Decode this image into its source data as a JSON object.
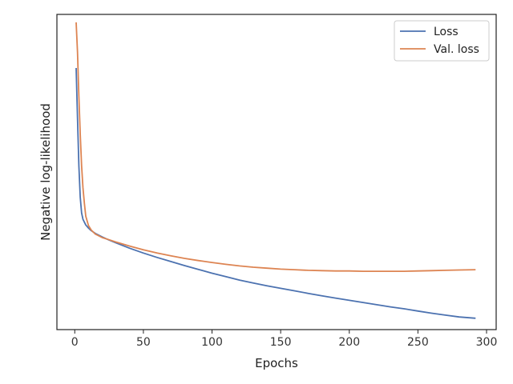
{
  "chart_data": {
    "type": "line",
    "xlabel": "Epochs",
    "ylabel": "Negative log-likelihood",
    "xlim": [
      -13,
      307
    ],
    "ylim": [
      0,
      100
    ],
    "x_ticks": [
      0,
      50,
      100,
      150,
      200,
      250,
      300
    ],
    "y_ticks_visible": false,
    "grid": false,
    "legend_position": "top-right",
    "series": [
      {
        "name": "Loss",
        "color": "#4c72b0",
        "x": [
          1,
          2,
          3,
          4,
          5,
          6,
          8,
          10,
          12,
          15,
          20,
          25,
          30,
          40,
          50,
          60,
          70,
          80,
          90,
          100,
          110,
          120,
          130,
          140,
          150,
          160,
          170,
          180,
          190,
          200,
          210,
          220,
          230,
          240,
          250,
          260,
          270,
          280,
          292
        ],
        "y": [
          83.0,
          67.0,
          52.0,
          42.0,
          37.0,
          35.0,
          33.2,
          32.2,
          31.4,
          30.5,
          29.4,
          28.4,
          27.5,
          25.8,
          24.3,
          22.9,
          21.6,
          20.3,
          19.1,
          17.9,
          16.8,
          15.7,
          14.8,
          13.9,
          13.1,
          12.3,
          11.5,
          10.7,
          10.0,
          9.3,
          8.6,
          7.9,
          7.2,
          6.6,
          5.9,
          5.2,
          4.6,
          4.0,
          3.6
        ]
      },
      {
        "name": "Val. loss",
        "color": "#dd8452",
        "x": [
          1,
          2,
          3,
          4,
          5,
          6,
          7,
          8,
          10,
          12,
          15,
          20,
          25,
          30,
          40,
          50,
          60,
          70,
          80,
          90,
          100,
          110,
          120,
          130,
          140,
          150,
          160,
          170,
          180,
          190,
          200,
          210,
          220,
          230,
          240,
          250,
          260,
          270,
          280,
          292
        ],
        "y": [
          97.5,
          88.0,
          74.0,
          62.0,
          52.0,
          45.0,
          40.0,
          36.0,
          33.0,
          31.6,
          30.3,
          29.2,
          28.5,
          27.8,
          26.5,
          25.3,
          24.3,
          23.4,
          22.6,
          21.9,
          21.3,
          20.7,
          20.2,
          19.8,
          19.5,
          19.2,
          19.0,
          18.8,
          18.7,
          18.6,
          18.6,
          18.5,
          18.5,
          18.5,
          18.5,
          18.6,
          18.7,
          18.8,
          18.9,
          19.0
        ]
      }
    ]
  }
}
